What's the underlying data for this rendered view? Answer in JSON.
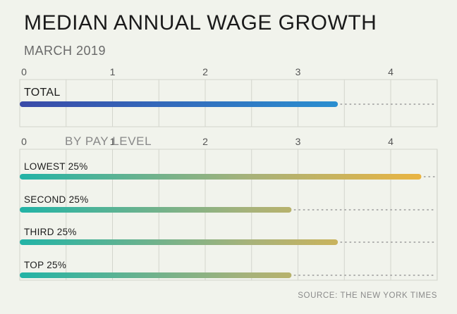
{
  "title": "MEDIAN ANNUAL WAGE GROWTH",
  "subtitle": "MARCH 2019",
  "source": "SOURCE: THE NEW YORK TIMES",
  "chart_data": [
    {
      "type": "bar",
      "orientation": "horizontal",
      "categories": [
        "TOTAL"
      ],
      "values": [
        3.4
      ],
      "xlim": [
        0,
        4.5
      ],
      "xticks": [
        "0",
        "1",
        "2",
        "3",
        "4"
      ],
      "grid": true,
      "colors": {
        "start": "#3a4aa8",
        "end": "#2b8fd0"
      }
    },
    {
      "type": "bar",
      "orientation": "horizontal",
      "title": "BY PAY LEVEL",
      "categories": [
        "LOWEST 25%",
        "SECOND 25%",
        "THIRD 25%",
        "TOP 25%"
      ],
      "values": [
        4.3,
        2.9,
        3.4,
        2.9
      ],
      "xlim": [
        0,
        4.5
      ],
      "xticks": [
        "0",
        "1",
        "2",
        "3",
        "4"
      ],
      "grid": true,
      "colors": {
        "start": "#22b3a6",
        "end": "#f0b43c"
      }
    }
  ]
}
